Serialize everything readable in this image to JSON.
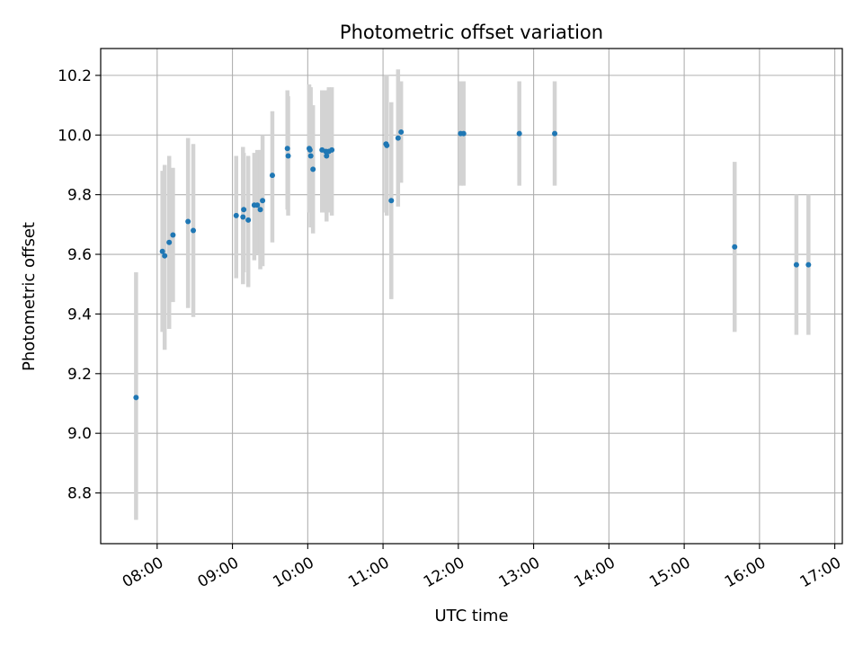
{
  "chart_data": {
    "type": "scatter",
    "title": "Photometric offset variation",
    "xlabel": "UTC time",
    "ylabel": "Photometric offset",
    "xlim_hours": [
      7.25,
      17.1
    ],
    "ylim": [
      8.63,
      10.29
    ],
    "grid": true,
    "colors": {
      "point": "#1f77b4",
      "errorbar": "#d3d3d3",
      "grid": "#b0b0b0",
      "axis": "#000000"
    },
    "x_ticks": [
      {
        "hour": 8,
        "label": "08:00"
      },
      {
        "hour": 9,
        "label": "09:00"
      },
      {
        "hour": 10,
        "label": "10:00"
      },
      {
        "hour": 11,
        "label": "11:00"
      },
      {
        "hour": 12,
        "label": "12:00"
      },
      {
        "hour": 13,
        "label": "13:00"
      },
      {
        "hour": 14,
        "label": "14:00"
      },
      {
        "hour": 15,
        "label": "15:00"
      },
      {
        "hour": 16,
        "label": "16:00"
      },
      {
        "hour": 17,
        "label": "17:00"
      }
    ],
    "y_ticks": [
      {
        "value": 8.8,
        "label": "8.8"
      },
      {
        "value": 9.0,
        "label": "9.0"
      },
      {
        "value": 9.2,
        "label": "9.2"
      },
      {
        "value": 9.4,
        "label": "9.4"
      },
      {
        "value": 9.6,
        "label": "9.6"
      },
      {
        "value": 9.8,
        "label": "9.8"
      },
      {
        "value": 10.0,
        "label": "10.0"
      },
      {
        "value": 10.2,
        "label": "10.2"
      }
    ],
    "points": [
      {
        "t": 7.72,
        "y": 9.12,
        "lo": 8.71,
        "hi": 9.54
      },
      {
        "t": 8.07,
        "y": 9.61,
        "lo": 9.34,
        "hi": 9.88
      },
      {
        "t": 8.1,
        "y": 9.595,
        "lo": 9.28,
        "hi": 9.9
      },
      {
        "t": 8.16,
        "y": 9.64,
        "lo": 9.35,
        "hi": 9.93
      },
      {
        "t": 8.21,
        "y": 9.665,
        "lo": 9.44,
        "hi": 9.89
      },
      {
        "t": 8.41,
        "y": 9.71,
        "lo": 9.42,
        "hi": 9.99
      },
      {
        "t": 8.48,
        "y": 9.68,
        "lo": 9.39,
        "hi": 9.97
      },
      {
        "t": 9.05,
        "y": 9.73,
        "lo": 9.52,
        "hi": 9.93
      },
      {
        "t": 9.14,
        "y": 9.725,
        "lo": 9.5,
        "hi": 9.96
      },
      {
        "t": 9.15,
        "y": 9.75,
        "lo": 9.54,
        "hi": 9.94
      },
      {
        "t": 9.21,
        "y": 9.715,
        "lo": 9.49,
        "hi": 9.93
      },
      {
        "t": 9.29,
        "y": 9.765,
        "lo": 9.58,
        "hi": 9.94
      },
      {
        "t": 9.33,
        "y": 9.765,
        "lo": 9.6,
        "hi": 9.95
      },
      {
        "t": 9.37,
        "y": 9.75,
        "lo": 9.55,
        "hi": 9.95
      },
      {
        "t": 9.4,
        "y": 9.78,
        "lo": 9.56,
        "hi": 10.0
      },
      {
        "t": 9.53,
        "y": 9.865,
        "lo": 9.64,
        "hi": 10.08
      },
      {
        "t": 9.73,
        "y": 9.955,
        "lo": 9.75,
        "hi": 10.15
      },
      {
        "t": 9.74,
        "y": 9.93,
        "lo": 9.73,
        "hi": 10.13
      },
      {
        "t": 10.02,
        "y": 9.955,
        "lo": 9.74,
        "hi": 10.17
      },
      {
        "t": 10.03,
        "y": 9.95,
        "lo": 9.75,
        "hi": 10.16
      },
      {
        "t": 10.04,
        "y": 9.93,
        "lo": 9.69,
        "hi": 10.16
      },
      {
        "t": 10.07,
        "y": 9.885,
        "lo": 9.67,
        "hi": 10.1
      },
      {
        "t": 10.19,
        "y": 9.95,
        "lo": 9.74,
        "hi": 10.15
      },
      {
        "t": 10.24,
        "y": 9.945,
        "lo": 9.74,
        "hi": 10.15
      },
      {
        "t": 10.25,
        "y": 9.93,
        "lo": 9.71,
        "hi": 10.15
      },
      {
        "t": 10.28,
        "y": 9.945,
        "lo": 9.74,
        "hi": 10.16
      },
      {
        "t": 10.32,
        "y": 9.95,
        "lo": 9.73,
        "hi": 10.16
      },
      {
        "t": 11.04,
        "y": 9.97,
        "lo": 9.74,
        "hi": 10.2
      },
      {
        "t": 11.05,
        "y": 9.965,
        "lo": 9.73,
        "hi": 10.2
      },
      {
        "t": 11.11,
        "y": 9.78,
        "lo": 9.45,
        "hi": 10.11
      },
      {
        "t": 11.2,
        "y": 9.99,
        "lo": 9.76,
        "hi": 10.22
      },
      {
        "t": 11.24,
        "y": 10.01,
        "lo": 9.84,
        "hi": 10.18
      },
      {
        "t": 12.03,
        "y": 10.005,
        "lo": 9.83,
        "hi": 10.18
      },
      {
        "t": 12.07,
        "y": 10.005,
        "lo": 9.83,
        "hi": 10.18
      },
      {
        "t": 12.81,
        "y": 10.005,
        "lo": 9.83,
        "hi": 10.18
      },
      {
        "t": 13.28,
        "y": 10.005,
        "lo": 9.83,
        "hi": 10.18
      },
      {
        "t": 15.67,
        "y": 9.625,
        "lo": 9.34,
        "hi": 9.91
      },
      {
        "t": 16.49,
        "y": 9.565,
        "lo": 9.33,
        "hi": 9.8
      },
      {
        "t": 16.65,
        "y": 9.565,
        "lo": 9.33,
        "hi": 9.8
      }
    ]
  }
}
